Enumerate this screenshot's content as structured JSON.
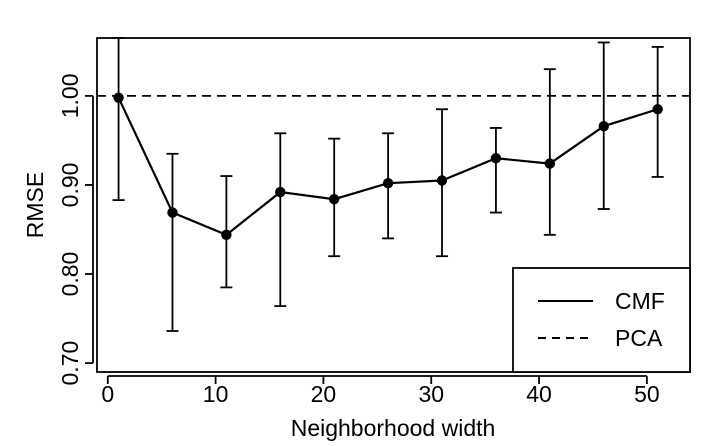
{
  "chart_data": {
    "type": "line",
    "title": "",
    "xlabel": "Neighborhood width",
    "ylabel": "RMSE",
    "xlim": [
      -1,
      54
    ],
    "ylim": [
      0.69,
      1.065
    ],
    "x_ticks": [
      0,
      10,
      20,
      30,
      40,
      50
    ],
    "x_tick_labels": [
      "0",
      "10",
      "20",
      "30",
      "40",
      "50"
    ],
    "y_ticks": [
      0.7,
      0.8,
      0.9,
      1.0
    ],
    "y_tick_labels": [
      "0.70",
      "0.80",
      "0.90",
      "1.00"
    ],
    "grid": false,
    "legend_position": "bottom-right",
    "legend": [
      {
        "label": "CMF",
        "style": "solid"
      },
      {
        "label": "PCA",
        "style": "dashed"
      }
    ],
    "series": [
      {
        "name": "CMF",
        "style": "solid-with-points-and-error-bars",
        "x": [
          1,
          6,
          11,
          16,
          21,
          26,
          31,
          36,
          41,
          46,
          51
        ],
        "values": [
          0.998,
          0.869,
          0.844,
          0.892,
          0.884,
          0.902,
          0.905,
          0.93,
          0.924,
          0.966,
          0.985
        ],
        "error_low": [
          0.883,
          0.736,
          0.785,
          0.764,
          0.82,
          0.84,
          0.82,
          0.869,
          0.844,
          0.873,
          0.909
        ],
        "error_high": [
          1.065,
          0.935,
          0.91,
          0.958,
          0.952,
          0.958,
          0.985,
          0.964,
          1.03,
          1.06,
          1.055
        ]
      },
      {
        "name": "PCA",
        "style": "dashed",
        "constant": 1.0
      }
    ],
    "colors": {
      "line": "#000000",
      "background": "#ffffff"
    }
  }
}
